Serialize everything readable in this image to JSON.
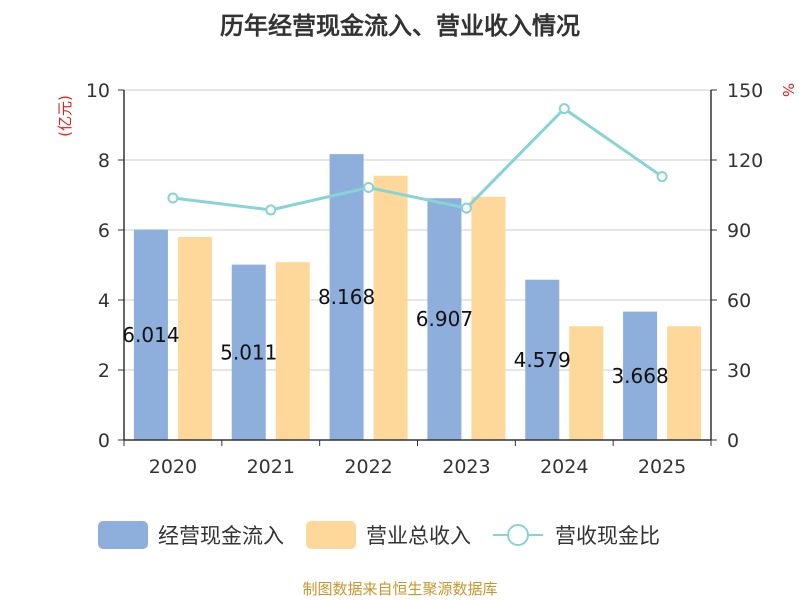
{
  "chart_data": {
    "type": "bar",
    "title": "历年经营现金流入、营业收入情况",
    "categories": [
      "2020",
      "2021",
      "2022",
      "2023",
      "2024",
      "2025"
    ],
    "y_left": {
      "unit": "(亿元)",
      "range": [
        0,
        10
      ],
      "ticks": [
        "0",
        "2",
        "4",
        "6",
        "8",
        "10"
      ]
    },
    "y_right": {
      "unit": "%",
      "range": [
        0,
        150
      ],
      "ticks": [
        "0",
        "30",
        "60",
        "90",
        "120",
        "150"
      ]
    },
    "series": [
      {
        "name": "经营现金流入",
        "kind": "bar",
        "axis": "left",
        "color": "#8eaedc",
        "values": [
          6.014,
          5.011,
          8.168,
          6.907,
          4.579,
          3.668
        ],
        "labels": [
          "6.014",
          "5.011",
          "8.168",
          "6.907",
          "4.579",
          "3.668"
        ]
      },
      {
        "name": "营业总收入",
        "kind": "bar",
        "axis": "left",
        "color": "#fed89a",
        "values": [
          5.8,
          5.08,
          7.55,
          6.95,
          3.25,
          3.25
        ]
      },
      {
        "name": "营收现金比",
        "kind": "line",
        "axis": "right",
        "color": "#87d3d6",
        "values": [
          103.7,
          98.6,
          108.2,
          99.4,
          142.0,
          112.9
        ]
      }
    ],
    "grid": true,
    "legend_position": "bottom"
  },
  "footer": "制图数据来自恒生聚源数据库"
}
